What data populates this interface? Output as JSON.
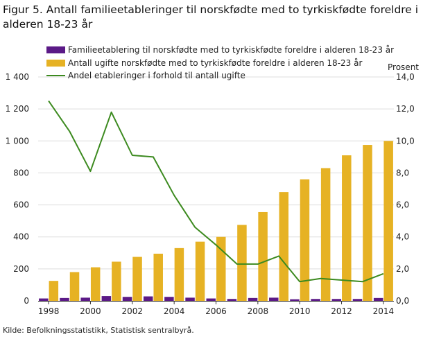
{
  "title": "Figur 5. Antall familieetableringer til norskfødte med to tyrkiskfødte foreldre i alderen 18-23 år",
  "source": "Kilde: Befolkningsstatistikk, Statistisk sentralbyrå.",
  "colors": {
    "purple": "#5b1a87",
    "gold": "#e6b224",
    "green": "#3c8a1f",
    "grid": "#dddddd",
    "axis": "#333333"
  },
  "chart_data": {
    "type": "bar",
    "years": [
      1998,
      1999,
      2000,
      2001,
      2002,
      2003,
      2004,
      2005,
      2006,
      2007,
      2008,
      2009,
      2010,
      2011,
      2012,
      2013,
      2014
    ],
    "x_tick_labels": [
      "1998",
      "2000",
      "2002",
      "2004",
      "2006",
      "2008",
      "2010",
      "2012",
      "2014"
    ],
    "left_axis": {
      "range": [
        0,
        1400
      ],
      "tick_labels": [
        "0",
        "200",
        "400",
        "600",
        "800",
        "1 000",
        "1 200",
        "1 400"
      ]
    },
    "right_axis": {
      "label": "Prosent",
      "range": [
        0,
        14
      ],
      "tick_labels": [
        "0,0",
        "2,0",
        "4,0",
        "6,0",
        "8,0",
        "10,0",
        "12,0",
        "14,0"
      ]
    },
    "series": [
      {
        "name": "Familieetablering til norskfødte med to tyrkiskfødte foreldre i alderen 18-23 år",
        "type": "bar",
        "axis": "left",
        "values": [
          15,
          18,
          20,
          30,
          25,
          28,
          25,
          20,
          15,
          12,
          18,
          20,
          10,
          12,
          12,
          12,
          18
        ]
      },
      {
        "name": "Antall ugifte norskfødte med to tyrkiskfødte foreldre i alderen 18-23 år",
        "type": "bar",
        "axis": "left",
        "values": [
          125,
          180,
          210,
          245,
          275,
          295,
          330,
          370,
          400,
          475,
          555,
          680,
          760,
          830,
          910,
          975,
          1000
        ]
      },
      {
        "name": "Andel etableringer i forhold til antall ugifte",
        "type": "line",
        "axis": "right",
        "values": [
          12.5,
          10.6,
          8.1,
          11.8,
          9.1,
          9.0,
          6.6,
          4.6,
          3.5,
          2.3,
          2.3,
          2.8,
          1.2,
          1.4,
          1.3,
          1.2,
          1.7
        ]
      }
    ]
  }
}
